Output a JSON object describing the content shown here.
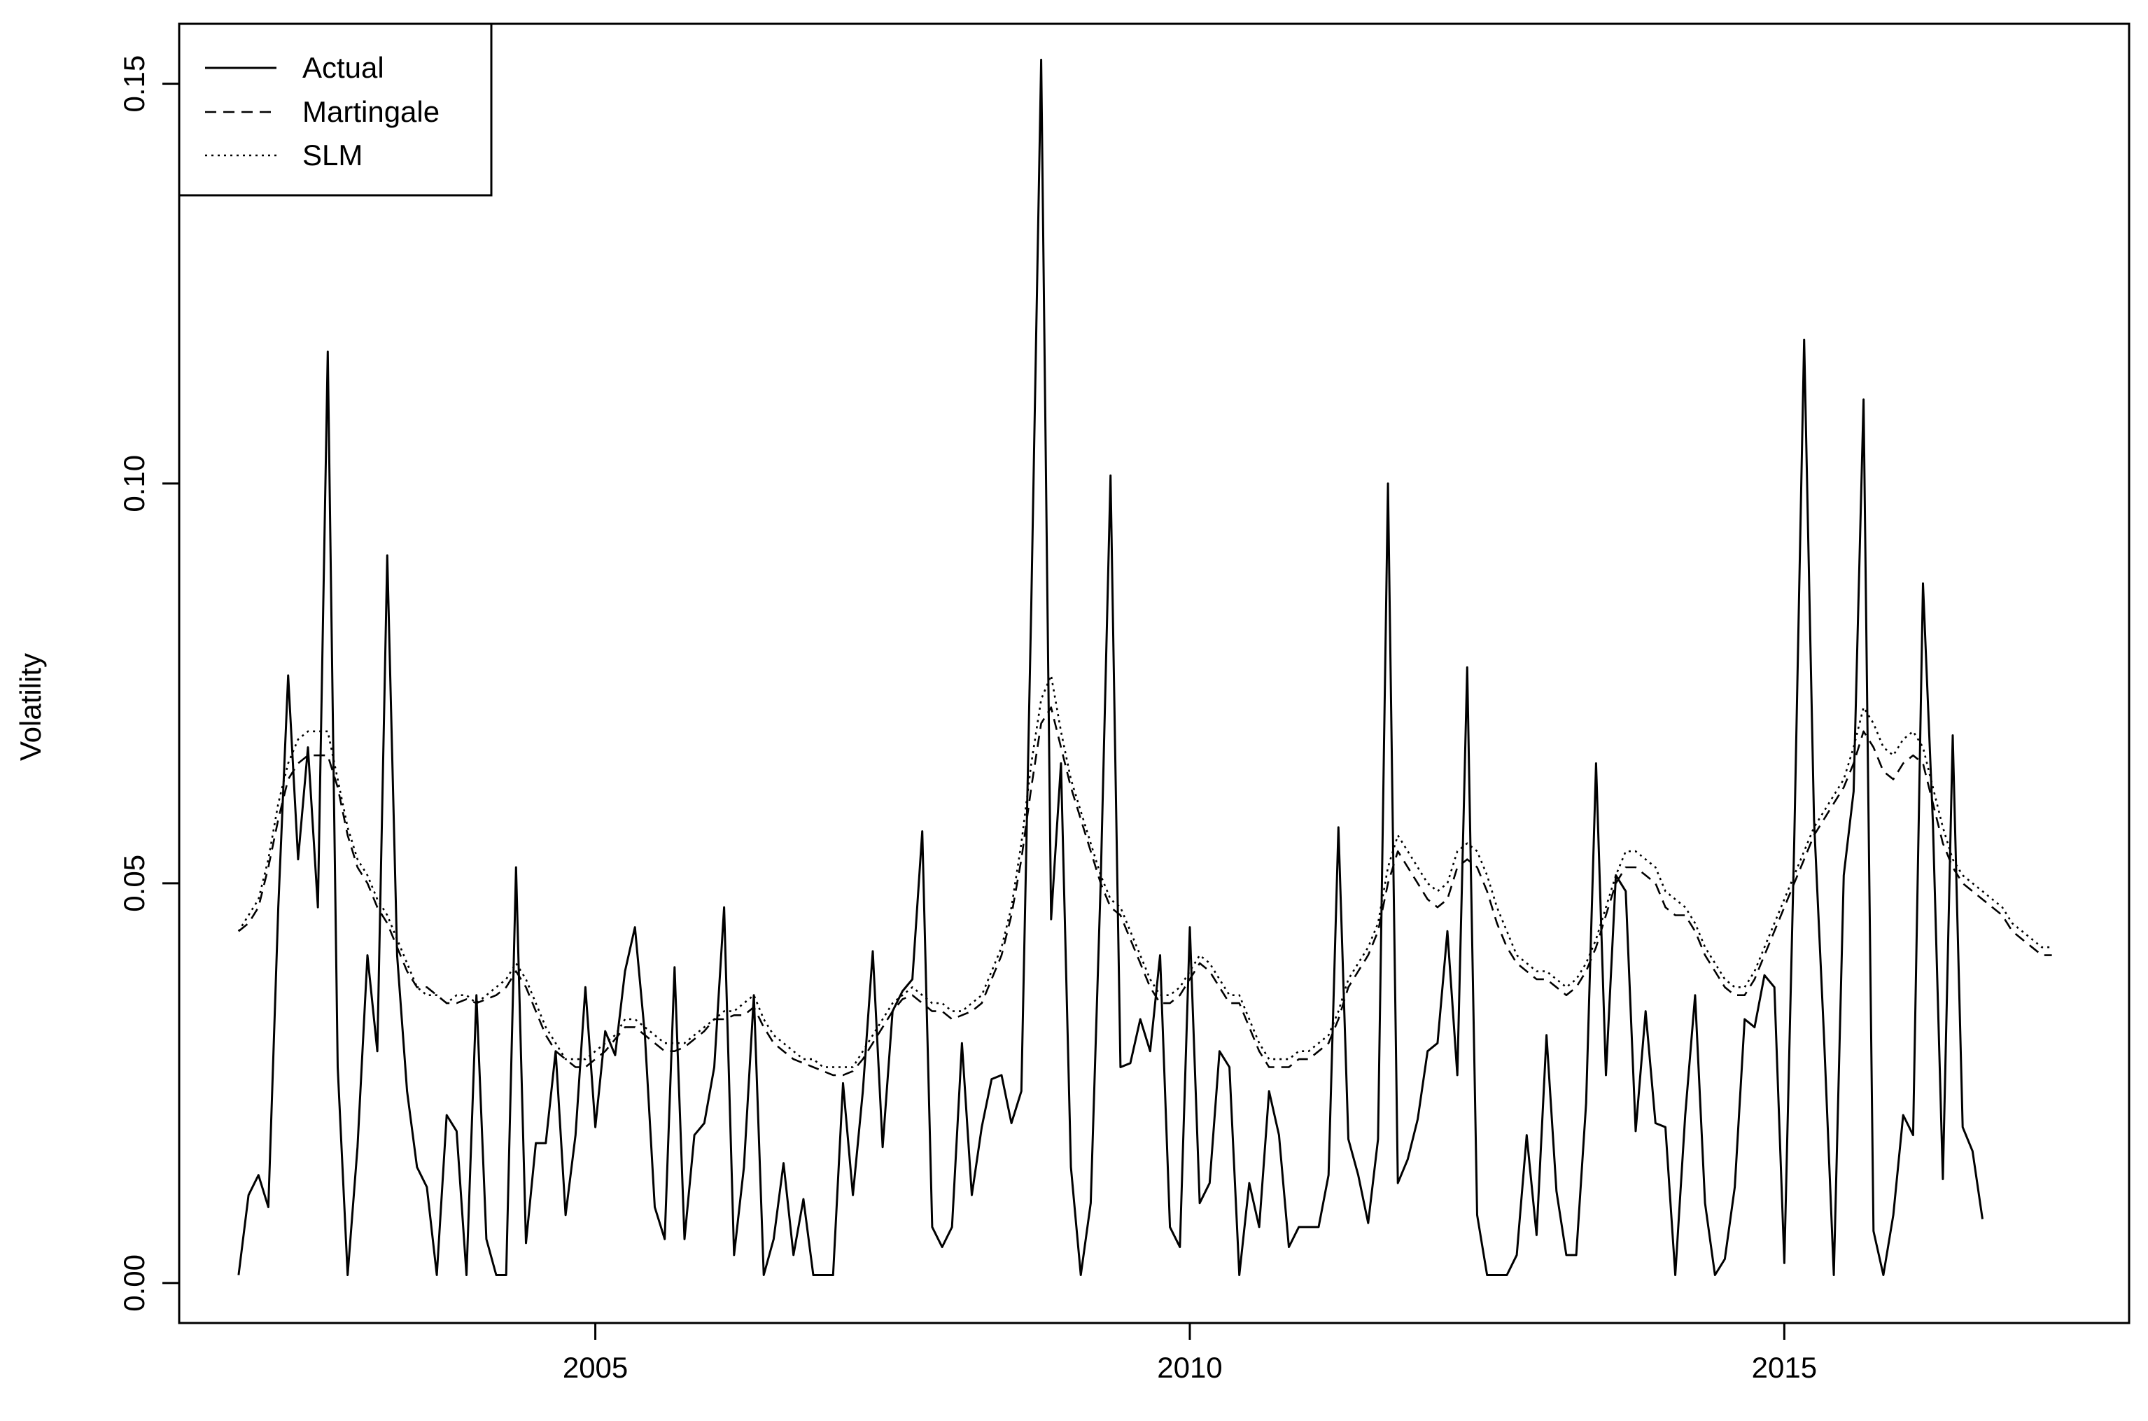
{
  "chart_data": {
    "type": "line",
    "ylabel": "Volatility",
    "xlabel": "",
    "xlim": [
      2001.5,
      2017.9
    ],
    "ylim": [
      -0.005,
      0.1575
    ],
    "x_ticks": [
      2005,
      2010,
      2015
    ],
    "x_tick_labels": [
      "2005",
      "2010",
      "2015"
    ],
    "y_ticks": [
      0.0,
      0.05,
      0.1,
      0.15
    ],
    "y_tick_labels": [
      "0.00",
      "0.05",
      "0.10",
      "0.15"
    ],
    "legend": {
      "position": "top-left",
      "entries": [
        {
          "label": "Actual",
          "style": "solid"
        },
        {
          "label": "Martingale",
          "style": "dashed"
        },
        {
          "label": "SLM",
          "style": "dotted"
        }
      ]
    },
    "grid": false,
    "x_start": 2002.0,
    "x_step": 0.0833333,
    "series": [
      {
        "name": "Actual",
        "style": "solid",
        "values": [
          0.001,
          0.011,
          0.0135,
          0.0095,
          0.047,
          0.076,
          0.053,
          0.067,
          0.047,
          0.1165,
          0.027,
          0.001,
          0.017,
          0.041,
          0.029,
          0.091,
          0.041,
          0.024,
          0.0145,
          0.012,
          0.001,
          0.021,
          0.019,
          0.001,
          0.036,
          0.0055,
          0.001,
          0.001,
          0.052,
          0.005,
          0.0175,
          0.0175,
          0.029,
          0.0085,
          0.0185,
          0.037,
          0.0195,
          0.0315,
          0.0285,
          0.039,
          0.0445,
          0.031,
          0.0095,
          0.0055,
          0.0395,
          0.0055,
          0.0185,
          0.02,
          0.027,
          0.047,
          0.0035,
          0.0145,
          0.036,
          0.001,
          0.0055,
          0.015,
          0.0035,
          0.0105,
          0.001,
          0.001,
          0.001,
          0.025,
          0.011,
          0.024,
          0.0415,
          0.017,
          0.034,
          0.0365,
          0.038,
          0.0565,
          0.007,
          0.0045,
          0.007,
          0.03,
          0.011,
          0.0195,
          0.0255,
          0.026,
          0.02,
          0.024,
          0.085,
          0.153,
          0.0455,
          0.065,
          0.0145,
          0.001,
          0.01,
          0.05,
          0.101,
          0.027,
          0.0275,
          0.033,
          0.029,
          0.041,
          0.007,
          0.0045,
          0.0445,
          0.01,
          0.0125,
          0.029,
          0.027,
          0.001,
          0.0125,
          0.007,
          0.024,
          0.0185,
          0.0045,
          0.007,
          0.007,
          0.007,
          0.0135,
          0.057,
          0.018,
          0.0135,
          0.0075,
          0.018,
          0.1,
          0.0125,
          0.0155,
          0.0205,
          0.029,
          0.03,
          0.044,
          0.026,
          0.077,
          0.0085,
          0.001,
          0.001,
          0.001,
          0.0035,
          0.0185,
          0.006,
          0.031,
          0.0115,
          0.0035,
          0.0035,
          0.0225,
          0.065,
          0.026,
          0.051,
          0.049,
          0.019,
          0.034,
          0.02,
          0.0195,
          0.001,
          0.021,
          0.036,
          0.01,
          0.001,
          0.003,
          0.012,
          0.033,
          0.032,
          0.0385,
          0.037,
          0.0025,
          0.055,
          0.118,
          0.058,
          0.031,
          0.001,
          0.051,
          0.0615,
          0.1105,
          0.0065,
          0.001,
          0.0085,
          0.021,
          0.0185,
          0.0875,
          0.0575,
          0.013,
          0.0685,
          0.0195,
          0.0165,
          0.008
        ]
      },
      {
        "name": "Martingale",
        "style": "dashed",
        "values": [
          0.044,
          0.045,
          0.047,
          0.052,
          0.058,
          0.063,
          0.065,
          0.066,
          0.066,
          0.066,
          0.062,
          0.056,
          0.052,
          0.05,
          0.047,
          0.045,
          0.042,
          0.039,
          0.037,
          0.037,
          0.036,
          0.035,
          0.035,
          0.0355,
          0.035,
          0.0355,
          0.036,
          0.037,
          0.039,
          0.037,
          0.034,
          0.031,
          0.029,
          0.028,
          0.027,
          0.027,
          0.028,
          0.029,
          0.0305,
          0.032,
          0.032,
          0.031,
          0.03,
          0.029,
          0.029,
          0.0295,
          0.0305,
          0.0315,
          0.033,
          0.033,
          0.0335,
          0.0335,
          0.0345,
          0.032,
          0.03,
          0.029,
          0.028,
          0.0275,
          0.027,
          0.0265,
          0.026,
          0.026,
          0.0265,
          0.028,
          0.03,
          0.032,
          0.034,
          0.0355,
          0.036,
          0.035,
          0.034,
          0.034,
          0.033,
          0.0335,
          0.034,
          0.035,
          0.038,
          0.041,
          0.046,
          0.053,
          0.062,
          0.07,
          0.072,
          0.067,
          0.062,
          0.058,
          0.054,
          0.05,
          0.047,
          0.046,
          0.043,
          0.04,
          0.037,
          0.035,
          0.035,
          0.036,
          0.038,
          0.04,
          0.039,
          0.037,
          0.035,
          0.035,
          0.032,
          0.029,
          0.027,
          0.027,
          0.027,
          0.028,
          0.028,
          0.029,
          0.03,
          0.033,
          0.037,
          0.039,
          0.041,
          0.044,
          0.05,
          0.054,
          0.052,
          0.05,
          0.048,
          0.047,
          0.048,
          0.052,
          0.053,
          0.052,
          0.049,
          0.045,
          0.042,
          0.04,
          0.039,
          0.038,
          0.038,
          0.037,
          0.036,
          0.037,
          0.039,
          0.042,
          0.046,
          0.05,
          0.052,
          0.052,
          0.051,
          0.05,
          0.047,
          0.046,
          0.046,
          0.044,
          0.041,
          0.039,
          0.037,
          0.036,
          0.036,
          0.038,
          0.041,
          0.044,
          0.047,
          0.05,
          0.053,
          0.056,
          0.058,
          0.06,
          0.062,
          0.065,
          0.069,
          0.067,
          0.064,
          0.063,
          0.065,
          0.066,
          0.065,
          0.06,
          0.055,
          0.052,
          0.05,
          0.049,
          0.048,
          0.047,
          0.046,
          0.044,
          0.043,
          0.042,
          0.041,
          0.041
        ]
      },
      {
        "name": "SLM",
        "style": "dotted",
        "values": [
          0.044,
          0.046,
          0.048,
          0.053,
          0.06,
          0.065,
          0.068,
          0.069,
          0.069,
          0.069,
          0.063,
          0.057,
          0.053,
          0.051,
          0.048,
          0.046,
          0.043,
          0.04,
          0.037,
          0.036,
          0.036,
          0.035,
          0.036,
          0.036,
          0.035,
          0.036,
          0.037,
          0.038,
          0.04,
          0.038,
          0.035,
          0.032,
          0.03,
          0.028,
          0.028,
          0.028,
          0.029,
          0.03,
          0.031,
          0.033,
          0.033,
          0.032,
          0.031,
          0.03,
          0.03,
          0.03,
          0.031,
          0.032,
          0.033,
          0.034,
          0.034,
          0.035,
          0.036,
          0.033,
          0.031,
          0.03,
          0.029,
          0.028,
          0.028,
          0.027,
          0.027,
          0.027,
          0.027,
          0.029,
          0.031,
          0.033,
          0.035,
          0.036,
          0.037,
          0.036,
          0.035,
          0.035,
          0.034,
          0.034,
          0.035,
          0.036,
          0.039,
          0.042,
          0.047,
          0.055,
          0.065,
          0.073,
          0.076,
          0.069,
          0.063,
          0.059,
          0.055,
          0.051,
          0.048,
          0.047,
          0.044,
          0.041,
          0.038,
          0.036,
          0.036,
          0.037,
          0.039,
          0.041,
          0.04,
          0.038,
          0.036,
          0.036,
          0.033,
          0.03,
          0.028,
          0.028,
          0.028,
          0.029,
          0.029,
          0.03,
          0.031,
          0.034,
          0.038,
          0.04,
          0.042,
          0.045,
          0.052,
          0.056,
          0.054,
          0.052,
          0.05,
          0.049,
          0.05,
          0.054,
          0.055,
          0.054,
          0.051,
          0.047,
          0.044,
          0.041,
          0.04,
          0.039,
          0.039,
          0.038,
          0.037,
          0.038,
          0.04,
          0.043,
          0.047,
          0.051,
          0.054,
          0.054,
          0.053,
          0.052,
          0.049,
          0.048,
          0.047,
          0.045,
          0.042,
          0.04,
          0.038,
          0.037,
          0.037,
          0.039,
          0.042,
          0.045,
          0.048,
          0.051,
          0.054,
          0.057,
          0.059,
          0.061,
          0.063,
          0.067,
          0.072,
          0.07,
          0.067,
          0.066,
          0.068,
          0.069,
          0.067,
          0.062,
          0.057,
          0.053,
          0.051,
          0.05,
          0.049,
          0.048,
          0.047,
          0.045,
          0.044,
          0.043,
          0.042,
          0.042
        ]
      }
    ]
  }
}
